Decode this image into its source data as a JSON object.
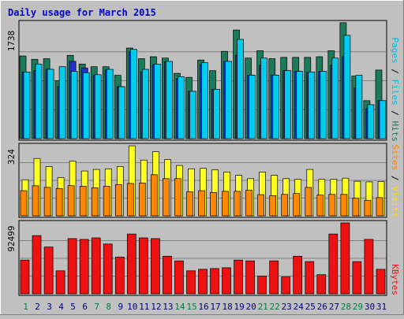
{
  "title": "Daily usage for March 2015",
  "colors": {
    "background": "#c0c0c0",
    "title": "#0000cc",
    "hits": "#1a7a5a",
    "files": "#00ccee",
    "pages": "#2233cc",
    "visits": "#ffff22",
    "sites": "#ff8800",
    "kbytes": "#ee1111",
    "weekend_day": "#008040",
    "weekday": "#000080"
  },
  "chart_data": [
    {
      "type": "bar",
      "panel": "top",
      "max_label": "1738",
      "ymax": 1738,
      "legend": [
        "Pages",
        "Files",
        "Hits"
      ],
      "categories": [
        "1",
        "2",
        "3",
        "4",
        "5",
        "6",
        "7",
        "8",
        "9",
        "10",
        "11",
        "12",
        "13",
        "14",
        "15",
        "16",
        "17",
        "18",
        "19",
        "20",
        "21",
        "22",
        "23",
        "24",
        "25",
        "26",
        "27",
        "28",
        "29",
        "30",
        "31"
      ],
      "series": [
        {
          "name": "Hits",
          "values": [
            1240,
            1190,
            1200,
            870,
            1250,
            1120,
            1080,
            1080,
            950,
            1360,
            1200,
            1230,
            1210,
            980,
            920,
            1180,
            1020,
            1310,
            1630,
            1210,
            1320,
            1200,
            1220,
            1220,
            1220,
            1230,
            1320,
            1740,
            940,
            570,
            1030
          ]
        },
        {
          "name": "Files",
          "values": [
            1000,
            1120,
            1040,
            1080,
            1010,
            990,
            960,
            1040,
            780,
            1340,
            1040,
            1120,
            1160,
            930,
            710,
            1140,
            740,
            1160,
            1490,
            950,
            1210,
            950,
            1020,
            1010,
            1000,
            1010,
            1210,
            1550,
            950,
            510,
            570
          ]
        },
        {
          "name": "Pages",
          "values": [
            1000,
            1020,
            1040,
            780,
            1160,
            1060,
            950,
            1030,
            780,
            1300,
            1000,
            1110,
            1150,
            900,
            710,
            1110,
            740,
            1160,
            1250,
            950,
            1100,
            950,
            1020,
            1010,
            1000,
            1010,
            1100,
            1230,
            760,
            450,
            570
          ]
        }
      ]
    },
    {
      "type": "bar",
      "panel": "middle",
      "max_label": "324",
      "ymax": 324,
      "legend": [
        "Sites",
        "Visits"
      ],
      "categories": [
        "1",
        "2",
        "3",
        "4",
        "5",
        "6",
        "7",
        "8",
        "9",
        "10",
        "11",
        "12",
        "13",
        "14",
        "15",
        "16",
        "17",
        "18",
        "19",
        "20",
        "21",
        "22",
        "23",
        "24",
        "25",
        "26",
        "27",
        "28",
        "29",
        "30",
        "31"
      ],
      "series": [
        {
          "name": "Visits",
          "values": [
            165,
            262,
            225,
            175,
            250,
            205,
            212,
            215,
            225,
            320,
            255,
            293,
            257,
            230,
            215,
            217,
            210,
            200,
            185,
            170,
            200,
            185,
            170,
            167,
            212,
            167,
            167,
            172,
            158,
            155,
            157
          ]
        },
        {
          "name": "Sites",
          "values": [
            115,
            137,
            130,
            125,
            138,
            135,
            128,
            135,
            143,
            148,
            150,
            188,
            170,
            170,
            110,
            115,
            107,
            112,
            112,
            117,
            97,
            92,
            98,
            102,
            130,
            95,
            98,
            98,
            81,
            71,
            83
          ]
        }
      ]
    },
    {
      "type": "bar",
      "panel": "bottom",
      "max_label": "92499",
      "ymax": 92499,
      "legend": [
        "KBytes"
      ],
      "categories": [
        "1",
        "2",
        "3",
        "4",
        "5",
        "6",
        "7",
        "8",
        "9",
        "10",
        "11",
        "12",
        "13",
        "14",
        "15",
        "16",
        "17",
        "18",
        "19",
        "20",
        "21",
        "22",
        "23",
        "24",
        "25",
        "26",
        "27",
        "28",
        "29",
        "30",
        "31"
      ],
      "series": [
        {
          "name": "KBytes",
          "values": [
            44000,
            76000,
            61000,
            30000,
            72000,
            71000,
            73000,
            65000,
            48000,
            78000,
            73000,
            72000,
            49000,
            43000,
            30000,
            32000,
            33000,
            34000,
            44000,
            43000,
            23000,
            43000,
            22000,
            49000,
            42000,
            25000,
            78000,
            92499,
            42000,
            71000,
            32000
          ]
        }
      ]
    }
  ],
  "weekend_days": [
    "1",
    "7",
    "8",
    "14",
    "15",
    "21",
    "22",
    "28",
    "29"
  ]
}
